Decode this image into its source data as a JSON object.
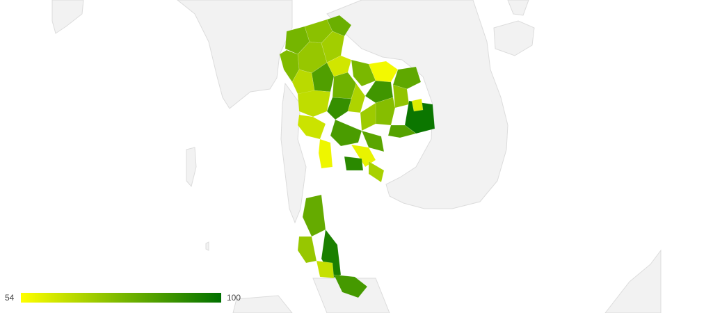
{
  "map": {
    "country": "Thailand",
    "colors": {
      "min": "#ffff00",
      "mid": "#7ab800",
      "max": "#007000",
      "land": "#f2f2f2",
      "border": "#dcdcdc"
    },
    "provinces": [
      {
        "id": "p01",
        "value": 78
      },
      {
        "id": "p02",
        "value": 74
      },
      {
        "id": "p03",
        "value": 80
      },
      {
        "id": "p04",
        "value": 70
      },
      {
        "id": "p05",
        "value": 72
      },
      {
        "id": "p06",
        "value": 76
      },
      {
        "id": "p07",
        "value": 62
      },
      {
        "id": "p08",
        "value": 85
      },
      {
        "id": "p09",
        "value": 66
      },
      {
        "id": "p10",
        "value": 79
      },
      {
        "id": "p11",
        "value": 56
      },
      {
        "id": "p12",
        "value": 82
      },
      {
        "id": "p13",
        "value": 77
      },
      {
        "id": "p14",
        "value": 88
      },
      {
        "id": "p15",
        "value": 73
      },
      {
        "id": "p16",
        "value": 68
      },
      {
        "id": "p17",
        "value": 98
      },
      {
        "id": "p18",
        "value": 60
      },
      {
        "id": "p19",
        "value": 75
      },
      {
        "id": "p20",
        "value": 84
      },
      {
        "id": "p21",
        "value": 71
      },
      {
        "id": "p22",
        "value": 90
      },
      {
        "id": "p23",
        "value": 65
      },
      {
        "id": "p24",
        "value": 63
      },
      {
        "id": "p25",
        "value": 57
      },
      {
        "id": "p26",
        "value": 86
      },
      {
        "id": "p27",
        "value": 58
      },
      {
        "id": "p28",
        "value": 92
      },
      {
        "id": "p29",
        "value": 69
      },
      {
        "id": "p30",
        "value": 83
      },
      {
        "id": "p31",
        "value": 81
      },
      {
        "id": "p32",
        "value": 95
      },
      {
        "id": "p33",
        "value": 72
      },
      {
        "id": "p34",
        "value": 64
      },
      {
        "id": "p35",
        "value": 87
      }
    ]
  },
  "legend": {
    "min_label": "54",
    "max_label": "100",
    "min": 54,
    "max": 100
  }
}
